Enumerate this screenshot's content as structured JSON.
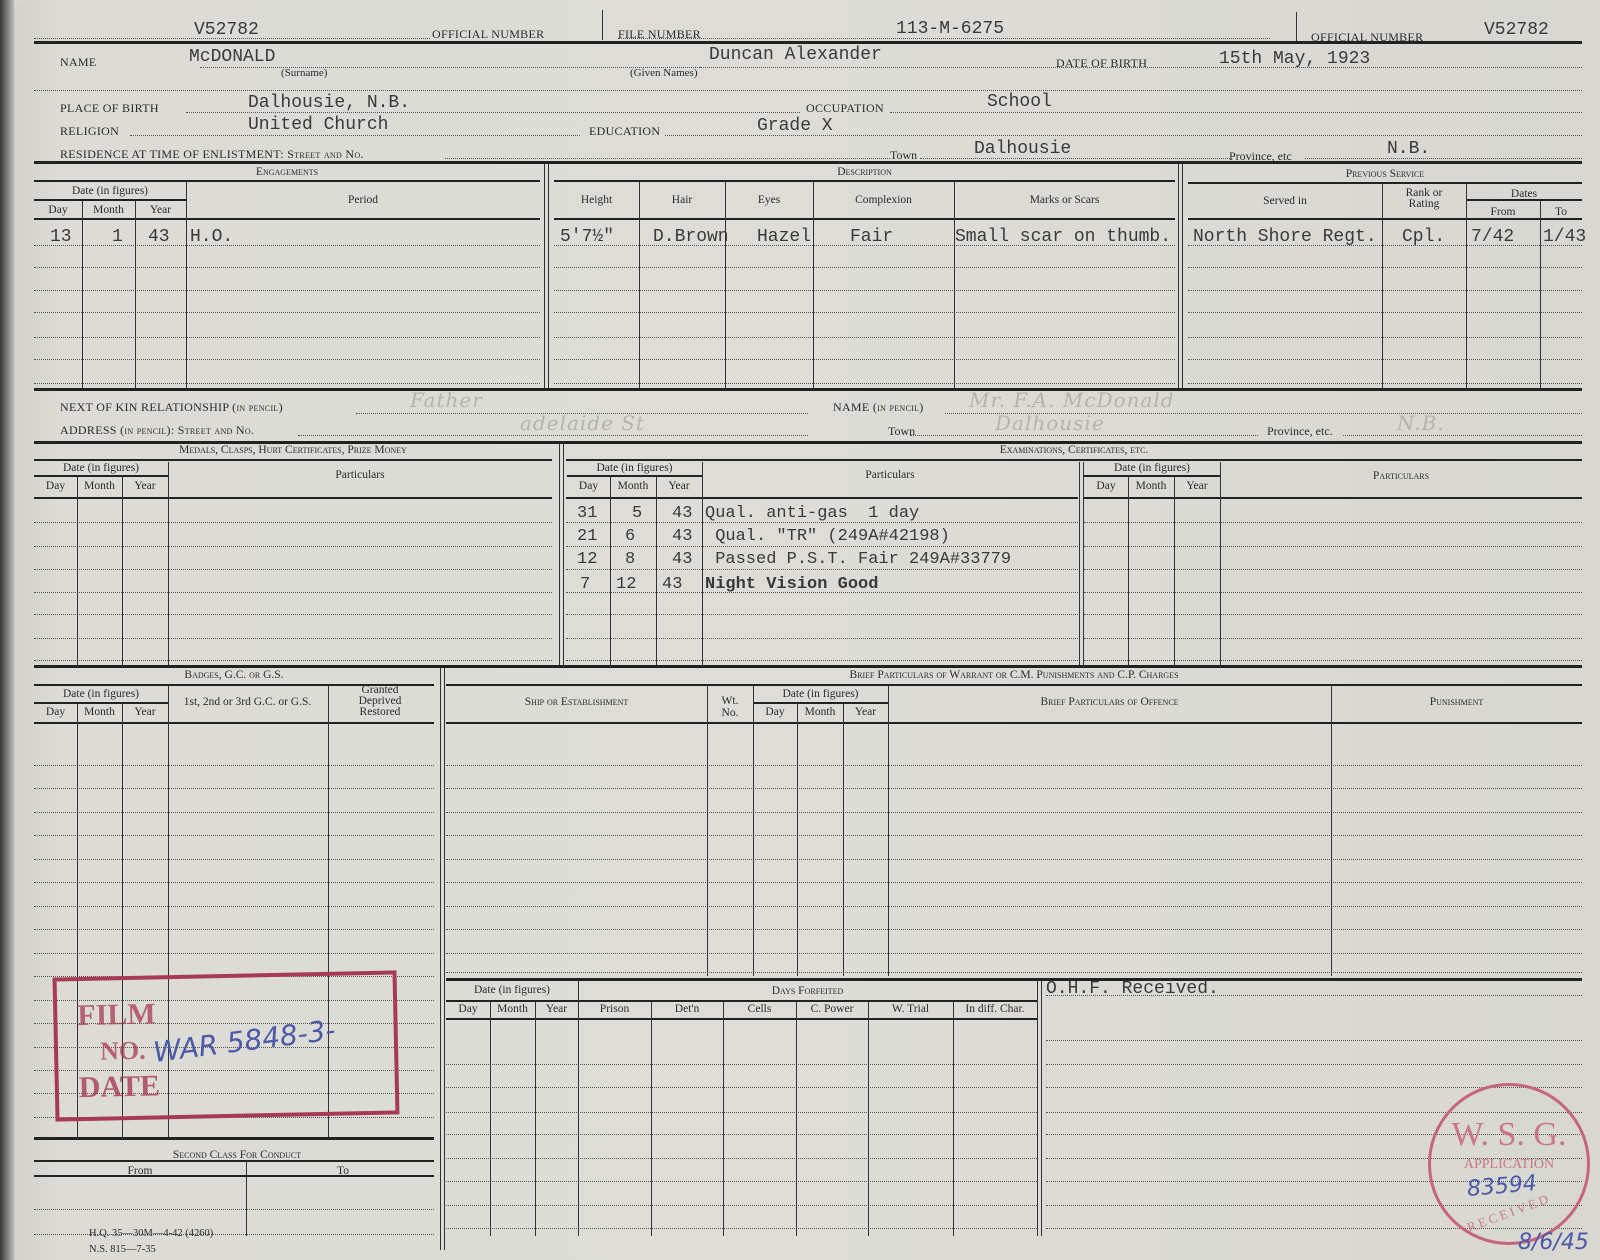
{
  "header": {
    "official_number_label": "OFFICIAL NUMBER",
    "official_number": "V52782",
    "file_number_label": "FILE NUMBER",
    "file_number": "113-M-6275",
    "official_number_label_right": "OFFICIAL NUMBER",
    "official_number_right": "V52782"
  },
  "personal": {
    "name_label": "NAME",
    "surname": "McDONALD",
    "surname_caption": "(Surname)",
    "given_names": "Duncan Alexander",
    "given_names_caption": "(Given Names)",
    "dob_label": "DATE OF BIRTH",
    "dob": "15th May, 1923",
    "pob_label": "PLACE OF BIRTH",
    "pob": "Dalhousie, N.B.",
    "occupation_label": "OCCUPATION",
    "occupation": "School",
    "religion_label": "RELIGION",
    "religion": "United Church",
    "education_label": "EDUCATION",
    "education": "Grade X",
    "residence_label": "RESIDENCE AT TIME OF ENLISTMENT: Street and No.",
    "town_label": "Town",
    "town": "Dalhousie",
    "province_label": "Province, etc",
    "province": "N.B."
  },
  "engagements": {
    "title": "Engagements",
    "date_header": "Date (in figures)",
    "day": "Day",
    "month": "Month",
    "year": "Year",
    "period": "Period",
    "rows": [
      {
        "day": "13",
        "month": "1",
        "year": "43",
        "period": "H.O."
      }
    ]
  },
  "description": {
    "title": "Description",
    "columns": [
      "Height",
      "Hair",
      "Eyes",
      "Complexion",
      "Marks or Scars"
    ],
    "row": {
      "height": "5'7½\"",
      "hair": "D.Brown",
      "eyes": "Hazel",
      "complexion": "Fair",
      "marks": "Small scar on thumb."
    }
  },
  "previous_service": {
    "title": "Previous Service",
    "served_in": "Served in",
    "rank": "Rank or Rating",
    "dates": "Dates",
    "from": "From",
    "to": "To",
    "row": {
      "served_in": "North Shore Regt.",
      "rank": "Cpl.",
      "from": "7/42",
      "to": "1/43"
    }
  },
  "next_of_kin": {
    "relationship_label": "NEXT OF KIN RELATIONSHIP (in pencil)",
    "relationship": "Father",
    "name_label": "NAME (in pencil)",
    "name": "Mr. F.A. McDonald",
    "address_label": "ADDRESS (in pencil): Street and No.",
    "address": "adelaide St",
    "town_label": "Town",
    "town": "Dalhousie",
    "province_label": "Province, etc.",
    "province": "N.B."
  },
  "medals": {
    "title": "Medals, Clasps, Hurt Certificates, Prize Money",
    "date_header": "Date (in figures)",
    "day": "Day",
    "month": "Month",
    "year": "Year",
    "particulars": "Particulars"
  },
  "examinations": {
    "title": "Examinations, Certificates, etc.",
    "date_header": "Date (in figures)",
    "day": "Day",
    "month": "Month",
    "year": "Year",
    "particulars": "Particulars",
    "particulars_right": "Particulars",
    "rows": [
      {
        "day": "31",
        "month": "5",
        "year": "43",
        "particulars": "Qual. anti-gas  1 day"
      },
      {
        "day": "21",
        "month": "6",
        "year": "43",
        "particulars": " Qual. \"TR\" (249A#42198)"
      },
      {
        "day": "12",
        "month": "8",
        "year": "43",
        "particulars": " Passed P.S.T. Fair 249A#33779"
      },
      {
        "day": "7",
        "month": "12",
        "year": "43",
        "particulars": "Night Vision Good"
      }
    ]
  },
  "badges": {
    "title": "Badges, G.C. or G.S.",
    "date_header": "Date (in figures)",
    "day": "Day",
    "month": "Month",
    "year": "Year",
    "gc_label": "1st, 2nd or 3rd G.C. or G.S.",
    "granted_label": "Granted Deprived Restored"
  },
  "punishments": {
    "title": "Brief Particulars of Warrant or C.M. Punishments and C.P. Charges",
    "ship": "Ship or Establishment",
    "wt_no": "Wt. No.",
    "date_header": "Date (in figures)",
    "day": "Day",
    "month": "Month",
    "year": "Year",
    "offence": "Brief Particulars of Offence",
    "punishment": "Punishment"
  },
  "days_forfeited": {
    "date_header": "Date (in figures)",
    "title": "Days Forfeited",
    "day": "Day",
    "month": "Month",
    "year": "Year",
    "columns": [
      "Prison",
      "Det'n",
      "Cells",
      "C. Power",
      "W. Trial",
      "In diff. Char."
    ]
  },
  "remarks": {
    "text": "O.H.F. Received."
  },
  "second_class": {
    "title": "Second Class For Conduct",
    "from": "From",
    "to": "To"
  },
  "footer": {
    "line1": "H.Q. 35—30M—4-42 (4260)",
    "line2": "N.S. 815—7-35"
  },
  "stamps": {
    "film": {
      "film": "FILM",
      "no": "NO.",
      "number": "WAR 5848-3-",
      "date": "DATE"
    },
    "wsg": {
      "title": "W. S. G.",
      "application": "APPLICATION",
      "number": "83594",
      "received": "RECEIVED",
      "date": "8/6/45"
    }
  },
  "colors": {
    "paper": "#dddcd6",
    "ink": "#2b2b2b",
    "stamp_red": "#a83a55",
    "stamp_pink": "#c7647f",
    "pen_blue": "#4a5aa8",
    "pencil": "#b4b3ad"
  }
}
